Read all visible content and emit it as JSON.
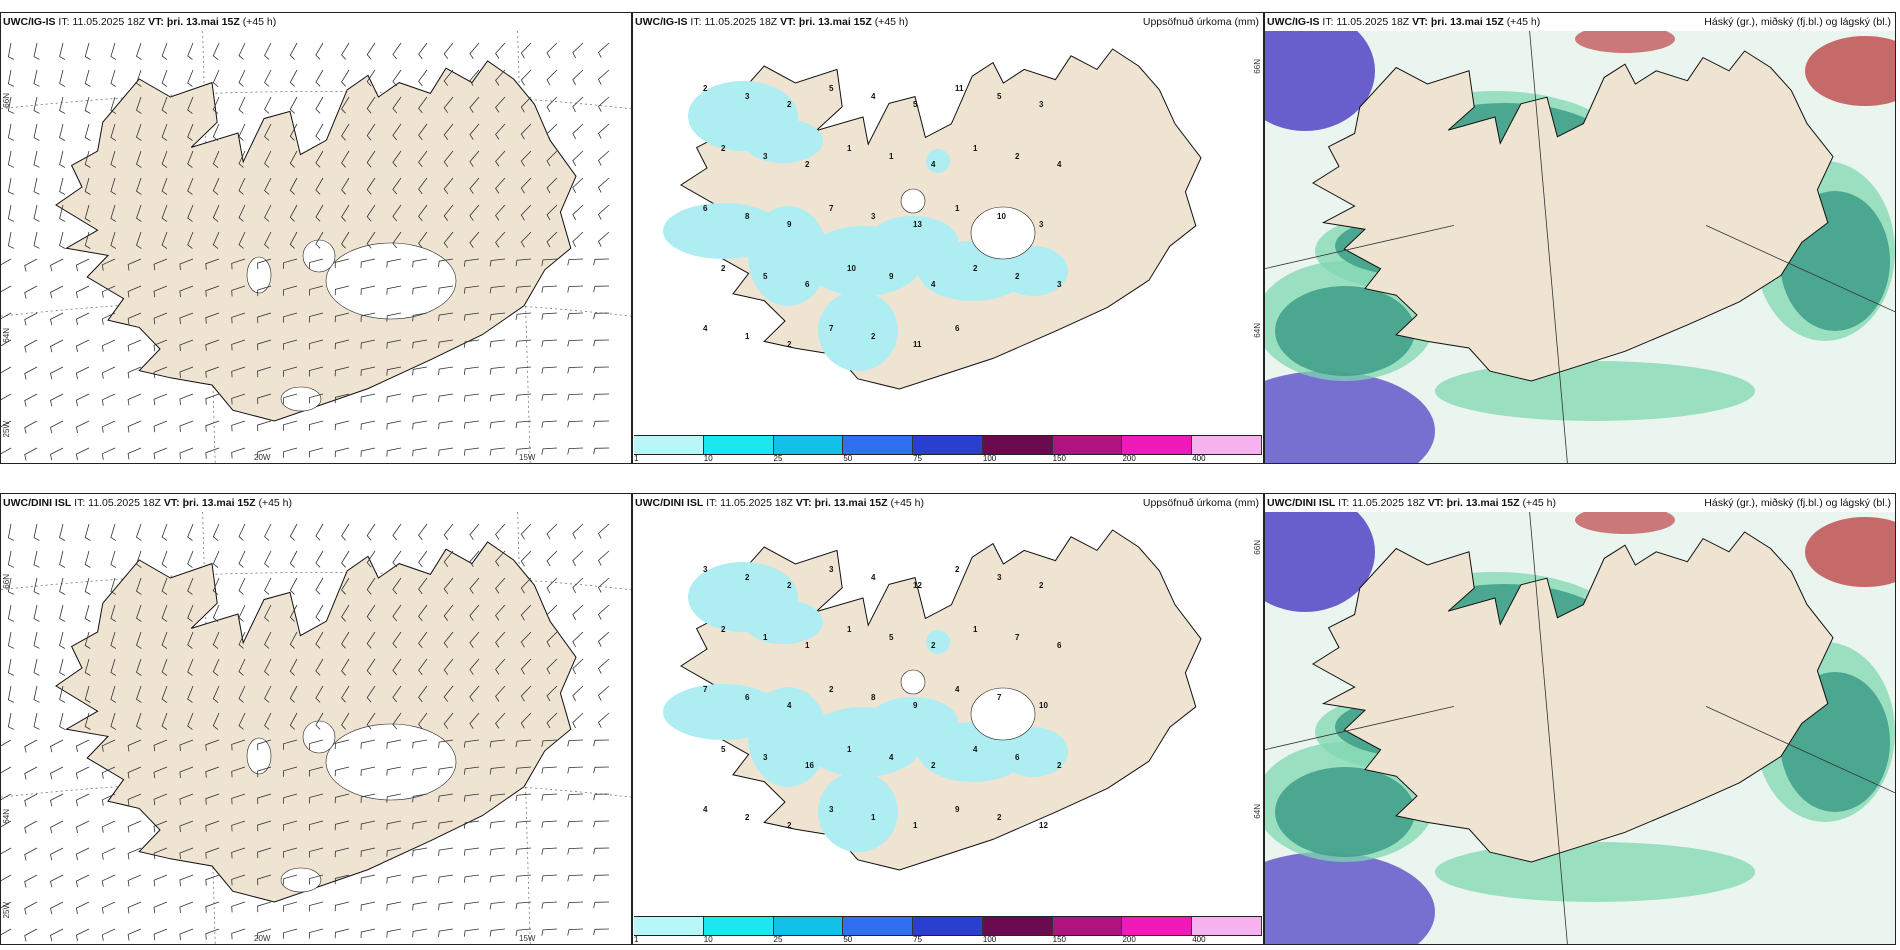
{
  "rows": [
    {
      "model": "UWC/IG-IS",
      "panels": [
        {
          "label": "UWC/IG-IS",
          "it": "IT: 11.05.2025 18Z",
          "vt_label": "VT:",
          "vt": "þri. 13.mai 15Z",
          "lead": "(+45 h)",
          "right_title": ""
        },
        {
          "label": "UWC/IG-IS",
          "it": "IT: 11.05.2025 18Z",
          "vt_label": "VT:",
          "vt": "þri. 13.mai 15Z",
          "lead": "(+45 h)",
          "right_title": "Uppsöfnuð úrkoma (mm)"
        },
        {
          "label": "UWC/IG-IS",
          "it": "IT: 11.05.2025 18Z",
          "vt_label": "VT:",
          "vt": "þri. 13.mai 15Z",
          "lead": "(+45 h)",
          "right_title": "Háský (gr.), miðský (fj.bl.) og lágský (bl.)"
        }
      ],
      "precip_labels": [
        "2",
        "3",
        "2",
        "5",
        "4",
        "5",
        "11",
        "5",
        "3",
        "2",
        "3",
        "2",
        "1",
        "1",
        "4",
        "1",
        "2",
        "4",
        "6",
        "8",
        "9",
        "7",
        "3",
        "13",
        "1",
        "10",
        "3",
        "2",
        "5",
        "6",
        "10",
        "9",
        "4",
        "2",
        "2",
        "3",
        "4",
        "1",
        "2",
        "7",
        "2",
        "11",
        "6"
      ]
    },
    {
      "model": "UWC/DINI ISL",
      "panels": [
        {
          "label": "UWC/DINI ISL",
          "it": "IT: 11.05.2025 18Z",
          "vt_label": "VT:",
          "vt": "þri. 13.mai 15Z",
          "lead": "(+45 h)",
          "right_title": ""
        },
        {
          "label": "UWC/DINI ISL",
          "it": "IT: 11.05.2025 18Z",
          "vt_label": "VT:",
          "vt": "þri. 13.mai 15Z",
          "lead": "(+45 h)",
          "right_title": "Uppsöfnuð úrkoma (mm)"
        },
        {
          "label": "UWC/DINI ISL",
          "it": "IT: 11.05.2025 18Z",
          "vt_label": "VT:",
          "vt": "þri. 13.mai 15Z",
          "lead": "(+45 h)",
          "right_title": "Háský (gr.), miðský (fj.bl.) og lágský (bl.)"
        }
      ],
      "precip_labels": [
        "3",
        "2",
        "2",
        "3",
        "4",
        "12",
        "2",
        "3",
        "2",
        "2",
        "1",
        "1",
        "1",
        "5",
        "2",
        "1",
        "7",
        "6",
        "7",
        "6",
        "4",
        "2",
        "8",
        "9",
        "4",
        "7",
        "10",
        "5",
        "3",
        "16",
        "1",
        "4",
        "2",
        "4",
        "6",
        "2",
        "4",
        "2",
        "2",
        "3",
        "1",
        "1",
        "9",
        "2",
        "12"
      ]
    }
  ],
  "axis_labels": {
    "lat_66": "66N",
    "lat_64": "64N",
    "lon_25": "25W",
    "lon_20": "20W",
    "lon_15": "15W"
  },
  "colorbar": {
    "ticks": [
      "1",
      "10",
      "25",
      "50",
      "75",
      "100",
      "150",
      "200",
      "400"
    ],
    "colors": [
      "#b7f7f7",
      "#1ce6ee",
      "#13c0ea",
      "#2f6ff0",
      "#2a3fd0",
      "#6a0b4f",
      "#b0137f",
      "#f01ab8",
      "#f6b2ee"
    ]
  },
  "colors": {
    "land": "#efe3d2",
    "precip": "#aeeef2",
    "cloud_low": "#3d9e86",
    "cloud_mid": "#7fd7b0",
    "cloud_high_red": "#c25a5a",
    "cloud_high_blue": "#5b4fc8"
  }
}
